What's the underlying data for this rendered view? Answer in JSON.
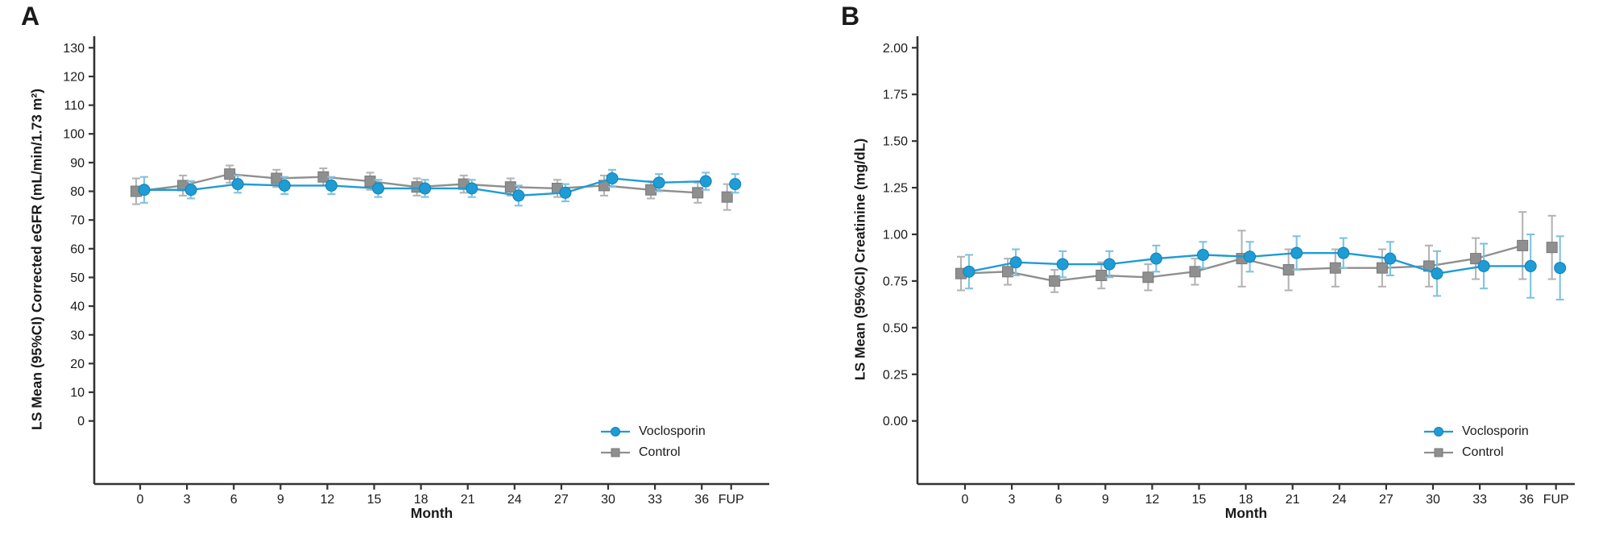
{
  "figure": {
    "background": "#ffffff",
    "text_color": "#1a1a1a",
    "axis_color": "#333333"
  },
  "chart_data": [
    {
      "type": "line",
      "panel_label": "A",
      "title": "",
      "xlabel": "Month",
      "ylabel": "LS Mean (95%CI) Corrected eGFR (mL/min/1.73 m²)",
      "x_categories": [
        "0",
        "3",
        "6",
        "9",
        "12",
        "15",
        "18",
        "21",
        "24",
        "27",
        "30",
        "33",
        "36",
        "FUP"
      ],
      "y_ticks": [
        "0",
        "10",
        "20",
        "30",
        "40",
        "50",
        "60",
        "70",
        "80",
        "90",
        "100",
        "110",
        "120",
        "130"
      ],
      "ylim": [
        0,
        130
      ],
      "grid": false,
      "legend_position": "bottom-right",
      "fup_disconnected": true,
      "series": [
        {
          "name": "Voclosporin",
          "marker": "circle",
          "color": "#1E9CD6",
          "edge_color": "#147FB2",
          "ci_color": "#7FC3DE",
          "means": [
            80.5,
            80.5,
            82.5,
            82,
            82,
            81,
            81,
            81,
            78.5,
            79.5,
            84.5,
            83,
            83.5,
            82.5
          ],
          "ci_low": [
            76,
            77.5,
            79.5,
            79,
            79,
            78,
            78,
            78,
            75,
            76.5,
            81.5,
            80,
            80.5,
            79.5
          ],
          "ci_high": [
            85,
            83.5,
            85.5,
            85,
            85,
            84,
            84,
            84,
            82,
            82.5,
            87.5,
            86,
            86.5,
            86
          ]
        },
        {
          "name": "Control",
          "marker": "square",
          "color": "#8F8F8F",
          "edge_color": "#787878",
          "ci_color": "#B4B4B4",
          "means": [
            80,
            82,
            86,
            84.5,
            85,
            83.5,
            81.5,
            82.5,
            81.5,
            81,
            82,
            80.5,
            79.5,
            78
          ],
          "ci_low": [
            75.5,
            78.5,
            83,
            81.5,
            82,
            80.5,
            78.5,
            79.5,
            78.5,
            78,
            78.5,
            77.5,
            76,
            73.5
          ],
          "ci_high": [
            84.5,
            85.5,
            89,
            87.5,
            88,
            86.5,
            84.5,
            85.5,
            84.5,
            84,
            85.5,
            83.5,
            83,
            82.5
          ]
        }
      ]
    },
    {
      "type": "line",
      "panel_label": "B",
      "title": "",
      "xlabel": "Month",
      "ylabel": "LS Mean (95%CI) Creatinine (mg/dL)",
      "x_categories": [
        "0",
        "3",
        "6",
        "9",
        "12",
        "15",
        "18",
        "21",
        "24",
        "27",
        "30",
        "33",
        "36",
        "FUP"
      ],
      "y_ticks": [
        "0.00",
        "0.25",
        "0.50",
        "0.75",
        "1.00",
        "1.25",
        "1.50",
        "1.75",
        "2.00"
      ],
      "ylim": [
        0,
        2
      ],
      "grid": false,
      "legend_position": "bottom-right",
      "fup_disconnected": true,
      "series": [
        {
          "name": "Voclosporin",
          "marker": "circle",
          "color": "#1E9CD6",
          "edge_color": "#147FB2",
          "ci_color": "#7FC3DE",
          "means": [
            0.8,
            0.85,
            0.84,
            0.84,
            0.87,
            0.89,
            0.88,
            0.9,
            0.9,
            0.87,
            0.79,
            0.83,
            0.83,
            0.82
          ],
          "ci_low": [
            0.71,
            0.78,
            0.77,
            0.77,
            0.8,
            0.82,
            0.8,
            0.81,
            0.82,
            0.78,
            0.67,
            0.71,
            0.66,
            0.65
          ],
          "ci_high": [
            0.89,
            0.92,
            0.91,
            0.91,
            0.94,
            0.96,
            0.96,
            0.99,
            0.98,
            0.96,
            0.91,
            0.95,
            1.0,
            0.99
          ]
        },
        {
          "name": "Control",
          "marker": "square",
          "color": "#8F8F8F",
          "edge_color": "#787878",
          "ci_color": "#B4B4B4",
          "means": [
            0.79,
            0.8,
            0.75,
            0.78,
            0.77,
            0.8,
            0.87,
            0.81,
            0.82,
            0.82,
            0.83,
            0.87,
            0.94,
            0.93
          ],
          "ci_low": [
            0.7,
            0.73,
            0.69,
            0.71,
            0.7,
            0.73,
            0.72,
            0.7,
            0.72,
            0.72,
            0.72,
            0.76,
            0.76,
            0.76
          ],
          "ci_high": [
            0.88,
            0.87,
            0.81,
            0.85,
            0.84,
            0.87,
            1.02,
            0.92,
            0.92,
            0.92,
            0.94,
            0.98,
            1.12,
            1.1
          ]
        }
      ]
    }
  ]
}
